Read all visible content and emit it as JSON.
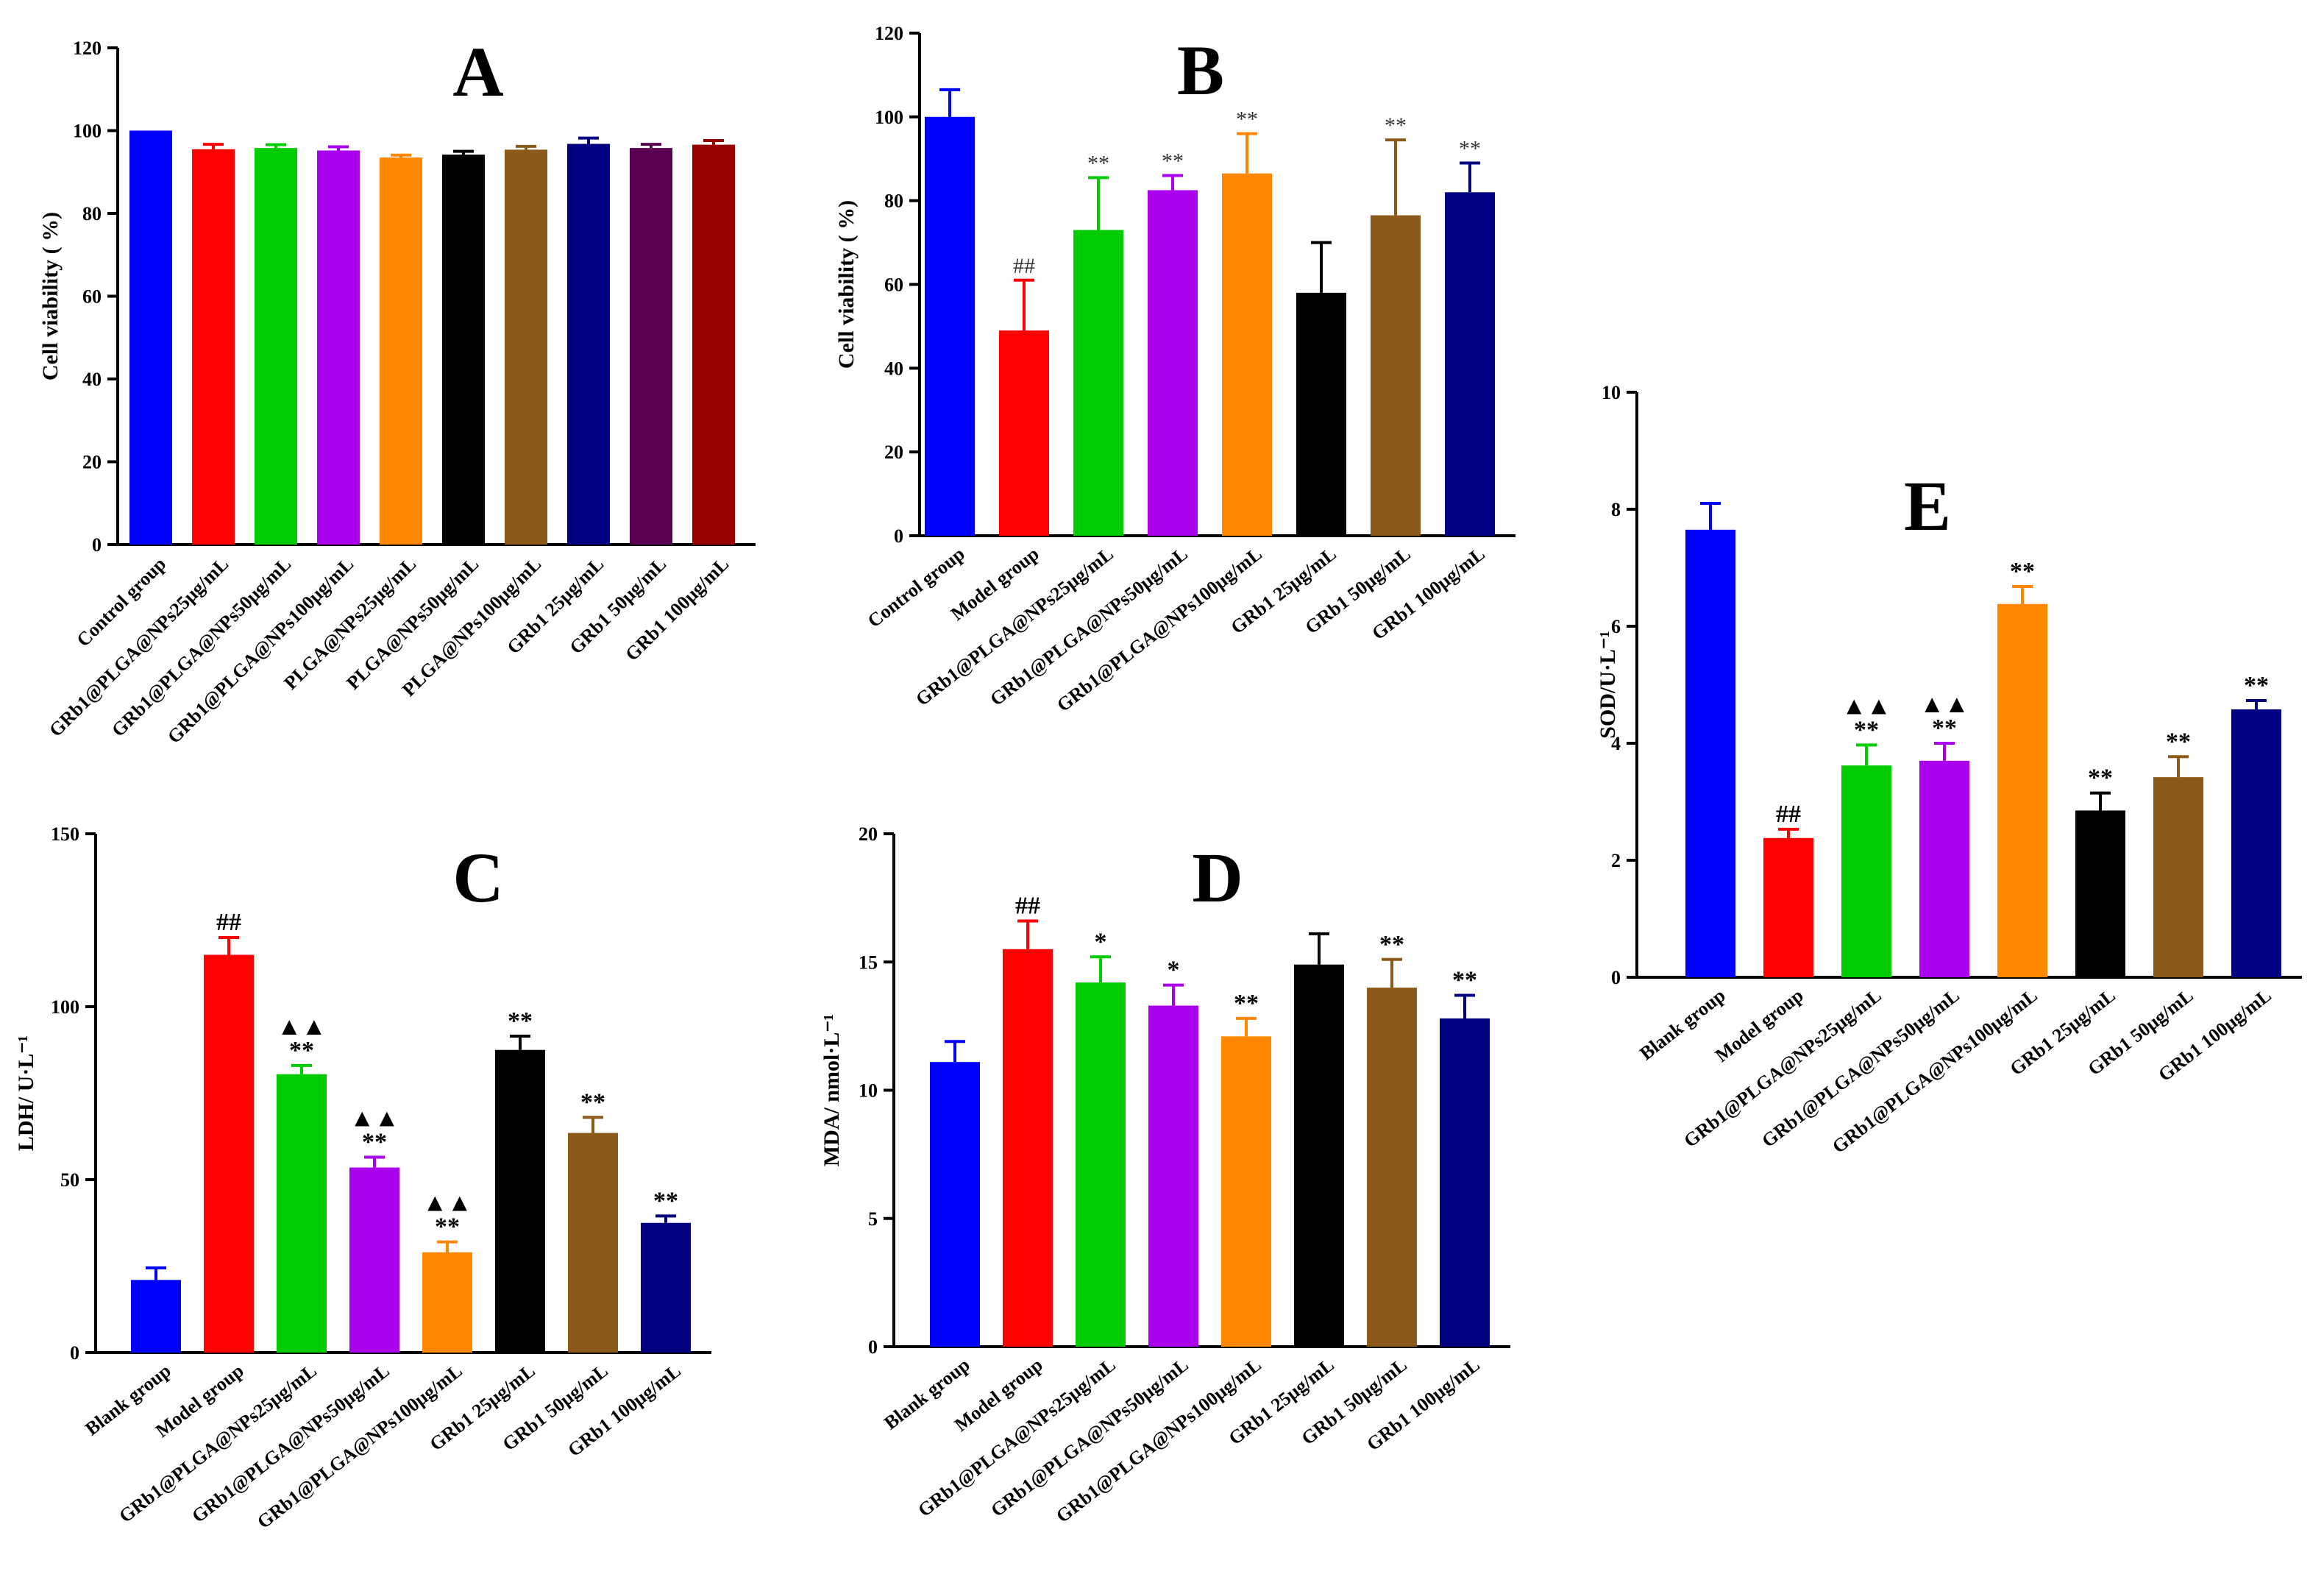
{
  "chart_data": [
    {
      "panel": "A",
      "type": "bar",
      "ylabel": "Cell viability ( %)",
      "ylim": [
        0,
        120
      ],
      "yticks": [
        0,
        20,
        40,
        60,
        80,
        100,
        120
      ],
      "categories": [
        "Control group",
        "GRb1@PLGA@NPs25μg/mL",
        "GRb1@PLGA@NPs50μg/mL",
        "GRb1@PLGA@NPs100μg/mL",
        "PLGA@NPs25μg/mL",
        "PLGA@NPs50μg/mL",
        "PLGA@NPs100μg/mL",
        "GRb1 25μg/mL",
        "GRb1 50μg/mL",
        "GRb1 100μg/mL"
      ],
      "values": [
        100,
        95.5,
        95.8,
        95.2,
        93.5,
        94.2,
        95.4,
        96.8,
        95.8,
        96.6
      ],
      "errors": [
        0,
        1.2,
        0.8,
        0.9,
        0.6,
        0.8,
        0.8,
        1.4,
        0.9,
        1.0
      ],
      "colors": [
        "#0000ff",
        "#ff0000",
        "#00cc00",
        "#aa00ee",
        "#ff8800",
        "#000000",
        "#8b5a1b",
        "#000080",
        "#5a0050",
        "#990000"
      ],
      "annotations": [
        "",
        "",
        "",
        "",
        "",
        "",
        "",
        "",
        "",
        ""
      ]
    },
    {
      "panel": "B",
      "type": "bar",
      "ylabel": "Cell viability ( %)",
      "ylim": [
        0,
        120
      ],
      "yticks": [
        0,
        20,
        40,
        60,
        80,
        100,
        120
      ],
      "categories": [
        "Control group",
        "Model group",
        "GRb1@PLGA@NPs25μg/mL",
        "GRb1@PLGA@NPs50μg/mL",
        "GRb1@PLGA@NPs100μg/mL",
        "GRb1 25μg/mL",
        "GRb1 50μg/mL",
        "GRb1 100μg/mL"
      ],
      "values": [
        100,
        49,
        73,
        82.5,
        86.5,
        58,
        76.5,
        82
      ],
      "errors": [
        6.5,
        12,
        12.5,
        3.5,
        9.5,
        12,
        18,
        7
      ],
      "colors": [
        "#0000ff",
        "#ff0000",
        "#00cc00",
        "#aa00ee",
        "#ff8800",
        "#000000",
        "#8b5a1b",
        "#000080"
      ],
      "annotations": [
        "",
        "##",
        "**",
        "**",
        "**",
        "",
        "**",
        "**"
      ]
    },
    {
      "panel": "C",
      "type": "bar",
      "ylabel": "LDH/ U·L⁻¹",
      "ylim": [
        0,
        150
      ],
      "yticks": [
        0,
        50,
        100,
        150
      ],
      "categories": [
        "Blank group",
        "Model group",
        "GRb1@PLGA@NPs25μg/mL",
        "GRb1@PLGA@NPs50μg/mL",
        "GRb1@PLGA@NPs100μg/mL",
        "GRb1 25μg/mL",
        "GRb1 50μg/mL",
        "GRb1 100μg/mL"
      ],
      "values": [
        21,
        115,
        80.5,
        53.5,
        29,
        87.5,
        63.5,
        37.5
      ],
      "errors": [
        3.5,
        5,
        2.5,
        3,
        3,
        4,
        4.5,
        2
      ],
      "colors": [
        "#0000ff",
        "#ff0000",
        "#00cc00",
        "#aa00ee",
        "#ff8800",
        "#000000",
        "#8b5a1b",
        "#000080"
      ],
      "annotations": [
        "",
        "##",
        "**",
        "**",
        "**",
        "**",
        "**",
        "**"
      ],
      "annotations_top": [
        "",
        "",
        "▲▲",
        "▲▲",
        "▲▲",
        "",
        "",
        ""
      ]
    },
    {
      "panel": "D",
      "type": "bar",
      "ylabel": "MDA/ nmol·L⁻¹",
      "ylim": [
        0,
        20
      ],
      "yticks": [
        0,
        5,
        10,
        15,
        20
      ],
      "categories": [
        "Blank group",
        "Model group",
        "GRb1@PLGA@NPs25μg/mL",
        "GRb1@PLGA@NPs50μg/mL",
        "GRb1@PLGA@NPs100μg/mL",
        "GRb1 25μg/mL",
        "GRb1 50μg/mL",
        "GRb1 100μg/mL"
      ],
      "values": [
        11.1,
        15.5,
        14.2,
        13.3,
        12.1,
        14.9,
        14.0,
        12.8
      ],
      "errors": [
        0.8,
        1.1,
        1.0,
        0.8,
        0.7,
        1.2,
        1.1,
        0.9
      ],
      "colors": [
        "#0000ff",
        "#ff0000",
        "#00cc00",
        "#aa00ee",
        "#ff8800",
        "#000000",
        "#8b5a1b",
        "#000080"
      ],
      "annotations": [
        "",
        "##",
        "*",
        "*",
        "**",
        "",
        "**",
        "**"
      ]
    },
    {
      "panel": "E",
      "type": "bar",
      "ylabel": "SOD/U·L⁻¹",
      "ylim": [
        0,
        10
      ],
      "yticks": [
        0,
        2,
        4,
        6,
        8,
        10
      ],
      "categories": [
        "Blank group",
        "Model group",
        "GRb1@PLGA@NPs25μg/mL",
        "GRb1@PLGA@NPs50μg/mL",
        "GRb1@PLGA@NPs100μg/mL",
        "GRb1 25μg/mL",
        "GRb1 50μg/mL",
        "GRb1 100μg/mL"
      ],
      "values": [
        7.65,
        2.38,
        3.62,
        3.7,
        6.38,
        2.85,
        3.42,
        4.58
      ],
      "errors": [
        0.45,
        0.15,
        0.35,
        0.3,
        0.3,
        0.3,
        0.35,
        0.15
      ],
      "colors": [
        "#0000ff",
        "#ff0000",
        "#00cc00",
        "#aa00ee",
        "#ff8800",
        "#000000",
        "#8b5a1b",
        "#000080"
      ],
      "annotations": [
        "",
        "##",
        "**",
        "**",
        "**",
        "**",
        "**",
        "**"
      ],
      "annotations_top": [
        "",
        "",
        "▲▲",
        "▲▲",
        "",
        "",
        "",
        ""
      ]
    }
  ]
}
